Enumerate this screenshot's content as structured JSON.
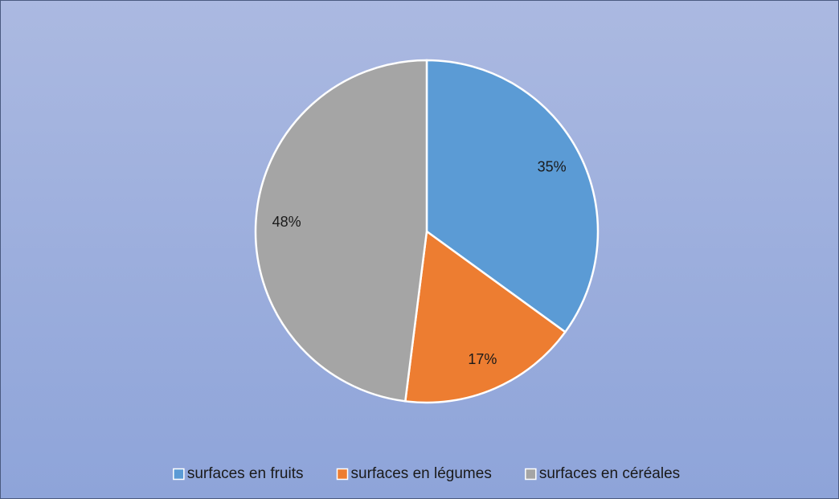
{
  "chart_data": {
    "type": "pie",
    "categories": [
      "surfaces en fruits",
      "surfaces en légumes",
      "surfaces en céréales"
    ],
    "values": [
      35,
      17,
      48
    ],
    "value_labels": [
      "35%",
      "17%",
      "48%"
    ],
    "colors": [
      "#5b9bd5",
      "#ed7d31",
      "#a5a5a5"
    ],
    "legend": "bottom"
  }
}
